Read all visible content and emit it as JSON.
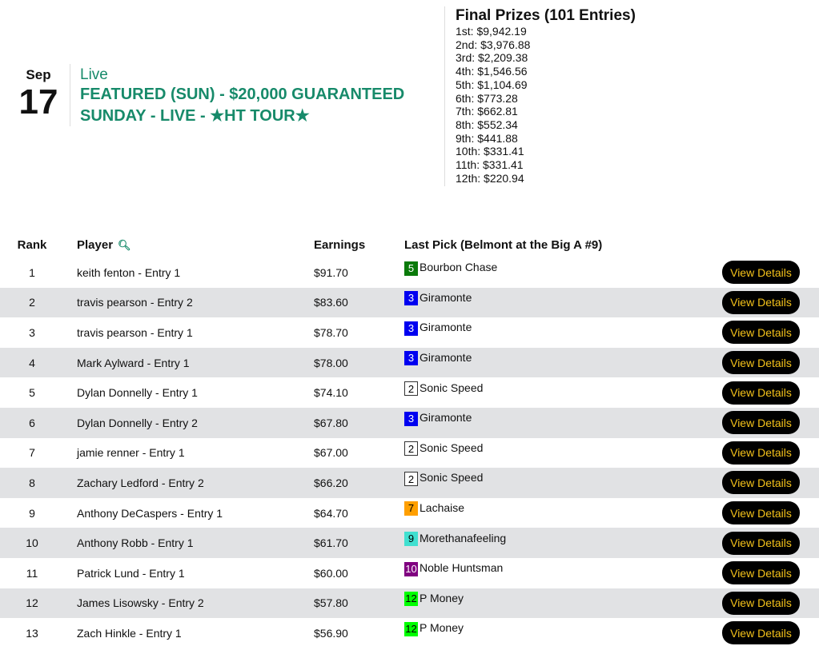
{
  "event": {
    "month": "Sep",
    "day": "17",
    "status": "Live",
    "title": "FEATURED (SUN) - $20,000 GUARANTEED SUNDAY - LIVE - ★HT TOUR★"
  },
  "prizes": {
    "title": "Final Prizes (101 Entries)",
    "items": [
      "1st: $9,942.19",
      "2nd: $3,976.88",
      "3rd: $2,209.38",
      "4th: $1,546.56",
      "5th: $1,104.69",
      "6th: $773.28",
      "7th: $662.81",
      "8th: $552.34",
      "9th: $441.88",
      "10th: $331.41",
      "11th: $331.41",
      "12th: $220.94"
    ]
  },
  "table": {
    "headers": {
      "rank": "Rank",
      "player": "Player",
      "earnings": "Earnings",
      "last_pick": "Last Pick (Belmont at the Big A #9)"
    },
    "button_label": "View Details",
    "rows": [
      {
        "rank": "1",
        "player": "keith fenton - Entry 1",
        "earnings": "$91.70",
        "num": "5",
        "horse": "Bourbon Chase",
        "bg": "#0a7a0a",
        "fg": "#fff"
      },
      {
        "rank": "2",
        "player": "travis pearson - Entry 2",
        "earnings": "$83.60",
        "num": "3",
        "horse": "Giramonte",
        "bg": "#0000f0",
        "fg": "#fff"
      },
      {
        "rank": "3",
        "player": "travis pearson - Entry 1",
        "earnings": "$78.70",
        "num": "3",
        "horse": "Giramonte",
        "bg": "#0000f0",
        "fg": "#fff"
      },
      {
        "rank": "4",
        "player": "Mark Aylward - Entry 1",
        "earnings": "$78.00",
        "num": "3",
        "horse": "Giramonte",
        "bg": "#0000f0",
        "fg": "#fff"
      },
      {
        "rank": "5",
        "player": "Dylan Donnelly - Entry 1",
        "earnings": "$74.10",
        "num": "2",
        "horse": "Sonic Speed",
        "bg": "#ffffff",
        "fg": "#000"
      },
      {
        "rank": "6",
        "player": "Dylan Donnelly - Entry 2",
        "earnings": "$67.80",
        "num": "3",
        "horse": "Giramonte",
        "bg": "#0000f0",
        "fg": "#fff"
      },
      {
        "rank": "7",
        "player": "jamie renner - Entry 1",
        "earnings": "$67.00",
        "num": "2",
        "horse": "Sonic Speed",
        "bg": "#ffffff",
        "fg": "#000"
      },
      {
        "rank": "8",
        "player": "Zachary Ledford - Entry 2",
        "earnings": "$66.20",
        "num": "2",
        "horse": "Sonic Speed",
        "bg": "#ffffff",
        "fg": "#000"
      },
      {
        "rank": "9",
        "player": "Anthony DeCaspers - Entry 1",
        "earnings": "$64.70",
        "num": "7",
        "horse": "Lachaise",
        "bg": "#ff9f00",
        "fg": "#000"
      },
      {
        "rank": "10",
        "player": "Anthony Robb - Entry 1",
        "earnings": "$61.70",
        "num": "9",
        "horse": "Morethanafeeling",
        "bg": "#40e0d0",
        "fg": "#000"
      },
      {
        "rank": "11",
        "player": "Patrick Lund - Entry 1",
        "earnings": "$60.00",
        "num": "10",
        "horse": "Noble Huntsman",
        "bg": "#800080",
        "fg": "#fff"
      },
      {
        "rank": "12",
        "player": "James Lisowsky - Entry 2",
        "earnings": "$57.80",
        "num": "12",
        "horse": "P Money",
        "bg": "#00ff00",
        "fg": "#000"
      },
      {
        "rank": "13",
        "player": "Zach Hinkle - Entry 1",
        "earnings": "$56.90",
        "num": "12",
        "horse": "P Money",
        "bg": "#00ff00",
        "fg": "#000"
      }
    ]
  }
}
